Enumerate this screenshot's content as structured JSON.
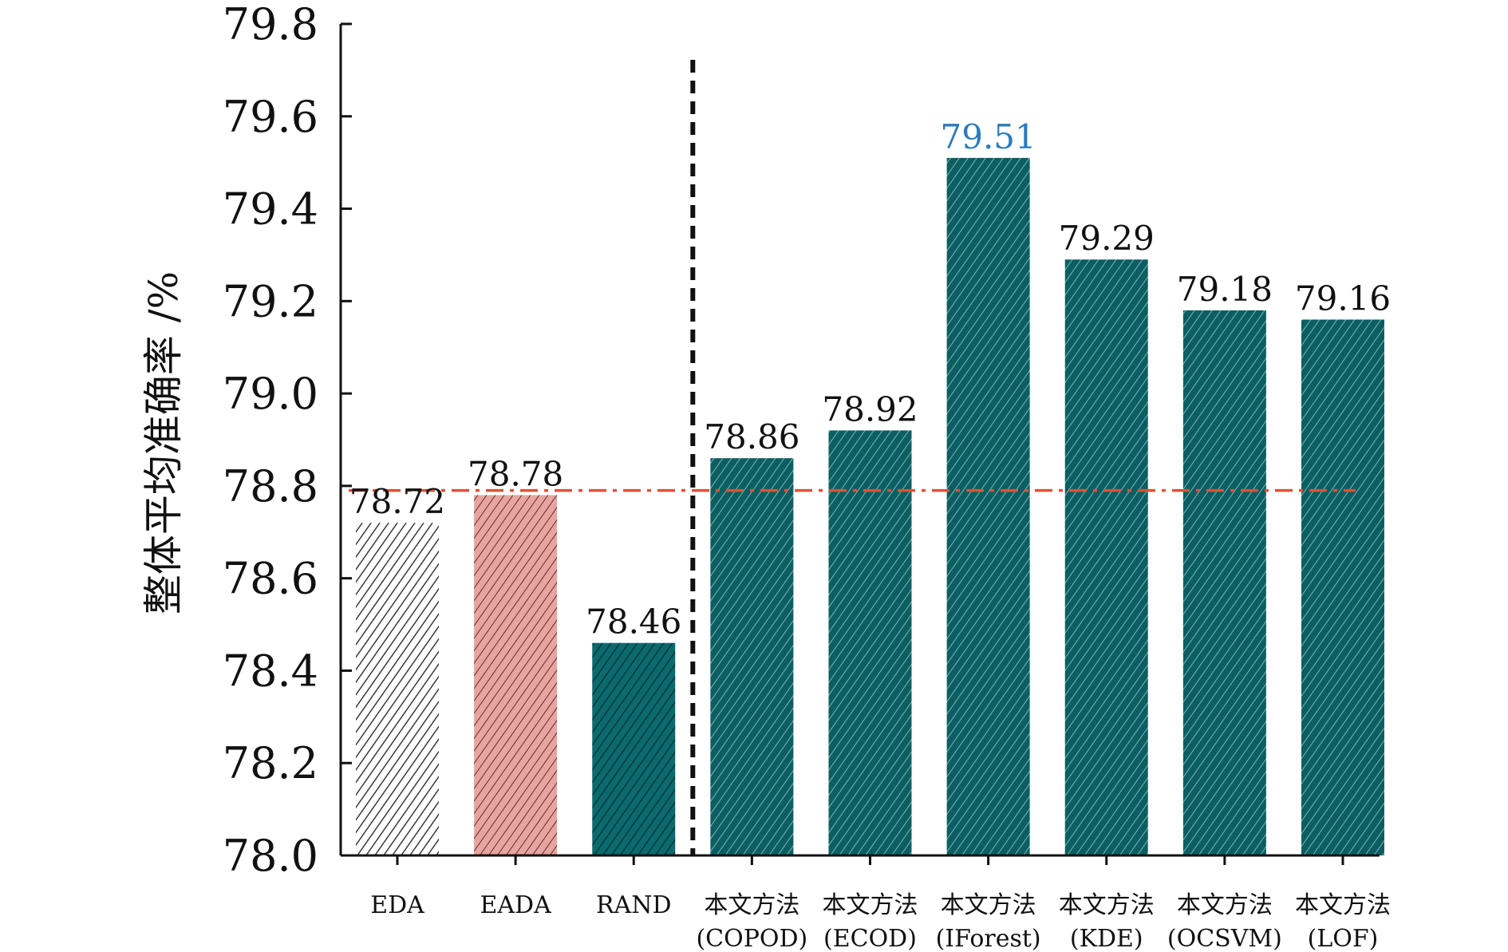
{
  "chart_data": {
    "type": "bar",
    "title": "",
    "ylabel": "整体平均准确率 /%",
    "xlabel": "",
    "ylim": [
      78.0,
      79.8
    ],
    "yticks": [
      "78.0",
      "78.2",
      "78.4",
      "78.6",
      "78.8",
      "79.0",
      "79.2",
      "79.4",
      "79.6",
      "79.8"
    ],
    "categories": [
      {
        "line1": "EDA",
        "line2": ""
      },
      {
        "line1": "EADA",
        "line2": ""
      },
      {
        "line1": "RAND",
        "line2": ""
      },
      {
        "line1": "本文方法",
        "line2": "(COPOD)"
      },
      {
        "line1": "本文方法",
        "line2": "(ECOD)"
      },
      {
        "line1": "本文方法",
        "line2": "(IForest)"
      },
      {
        "line1": "本文方法",
        "line2": "(KDE)"
      },
      {
        "line1": "本文方法",
        "line2": "(OCSVM)"
      },
      {
        "line1": "本文方法",
        "line2": "(LOF)"
      }
    ],
    "values": [
      78.72,
      78.78,
      78.46,
      78.86,
      78.92,
      79.51,
      79.29,
      79.18,
      79.16
    ],
    "value_labels": [
      "78.72",
      "78.78",
      "78.46",
      "78.86",
      "78.92",
      "79.51",
      "79.29",
      "79.18",
      "79.16"
    ],
    "highlight_index": 5,
    "bar_styles": [
      "white-hatched",
      "pink-hatched",
      "teal-dark-hatched",
      "teal-light-hatched",
      "teal-light-hatched",
      "teal-light-hatched",
      "teal-light-hatched",
      "teal-light-hatched",
      "teal-light-hatched"
    ],
    "reference_line": {
      "value": 78.79,
      "style": "dash-dot",
      "color": "#e0503a"
    },
    "separator": {
      "between": [
        2,
        3
      ],
      "style": "dashed",
      "color": "#111111"
    },
    "colors": {
      "teal": "#0b5f63",
      "pink": "#e8a49f",
      "highlight_label": "#2b7bbd",
      "label": "#111111"
    }
  }
}
